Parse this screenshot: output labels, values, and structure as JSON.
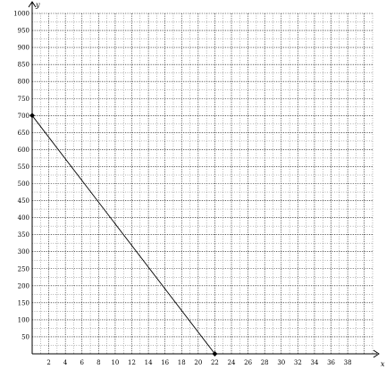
{
  "chart_data": {
    "type": "line",
    "title": "",
    "xlabel": "x",
    "ylabel": "y",
    "xlim": [
      0,
      41
    ],
    "ylim": [
      0,
      1000
    ],
    "x_ticks": [
      2,
      4,
      6,
      8,
      10,
      12,
      14,
      16,
      18,
      20,
      22,
      24,
      26,
      28,
      30,
      32,
      34,
      36,
      38
    ],
    "y_ticks": [
      50,
      100,
      150,
      200,
      250,
      300,
      350,
      400,
      450,
      500,
      550,
      600,
      650,
      700,
      750,
      800,
      850,
      900,
      950,
      1000
    ],
    "x_minor_step": 1,
    "y_minor_step": 25,
    "grid": true,
    "series": [
      {
        "points": [
          [
            0,
            700
          ],
          [
            22,
            0
          ]
        ],
        "marker": "diamond",
        "color": "#000000"
      }
    ]
  }
}
